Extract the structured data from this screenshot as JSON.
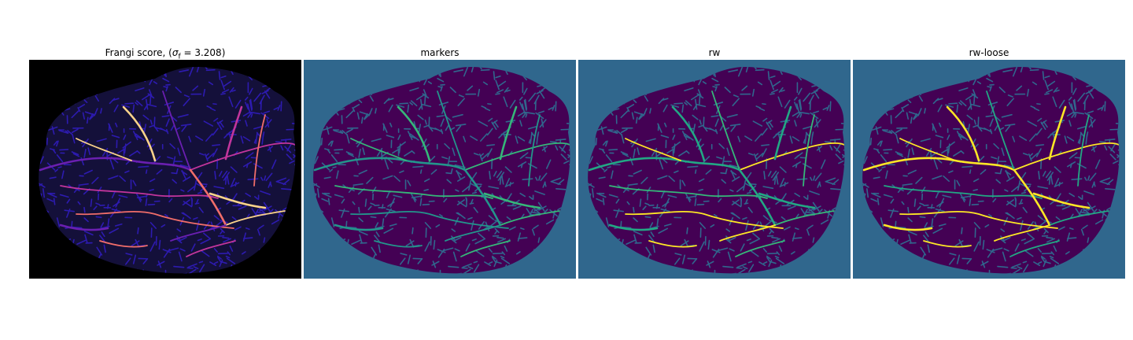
{
  "figure": {
    "panels": [
      {
        "id": "frangi",
        "title_prefix": "Frangi score, (",
        "title_symbol": "σ",
        "title_sub": "f",
        "title_suffix": " = 3.208)",
        "background_color": "#000000",
        "blob_color": "#14103a",
        "texture_color": "#2d1bb0",
        "vessel_colors": [
          "#6a1fb0",
          "#c2359c",
          "#f06d6a",
          "#fbd38a"
        ]
      },
      {
        "id": "markers",
        "title": "markers",
        "background_color": "#30678d",
        "blob_color": "#440154",
        "texture_color": "#30678d",
        "vessel_colors": [
          "#23958b",
          "#35b779"
        ]
      },
      {
        "id": "rw",
        "title": "rw",
        "background_color": "#30678d",
        "blob_color": "#440154",
        "texture_color": "#30678d",
        "vessel_colors": [
          "#22a884",
          "#35b779",
          "#fde725"
        ]
      },
      {
        "id": "rw-loose",
        "title": "rw-loose",
        "background_color": "#30678d",
        "blob_color": "#440154",
        "texture_color": "#30678d",
        "vessel_colors": [
          "#fde725",
          "#22a884",
          "#fde725"
        ]
      }
    ]
  }
}
